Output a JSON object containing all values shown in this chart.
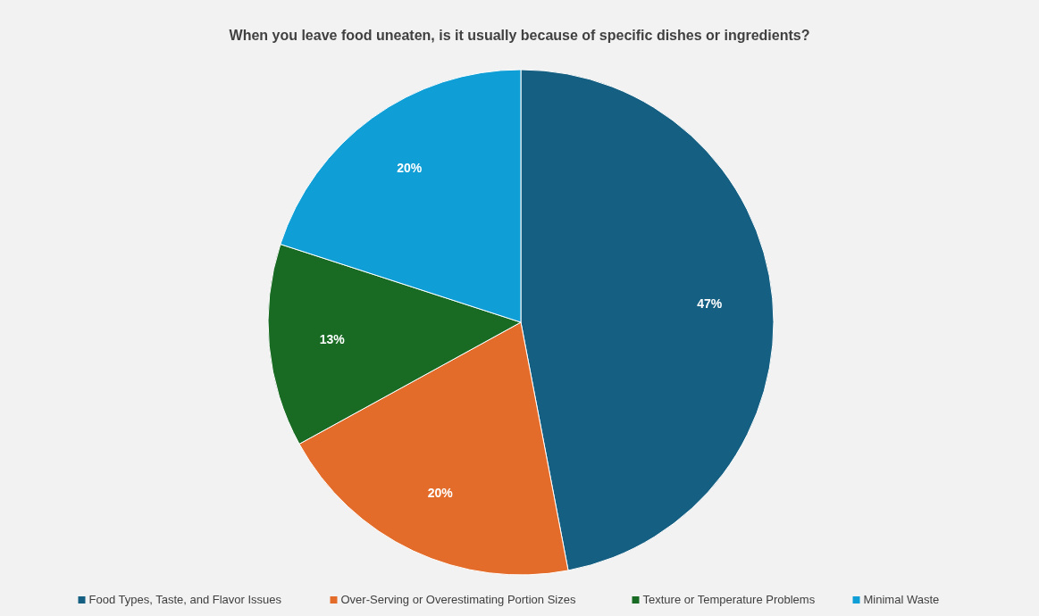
{
  "chart_data": {
    "type": "pie",
    "title": "When you leave food uneaten, is it usually because of specific dishes or ingredients?",
    "categories": [
      "Food Types, Taste, and Flavor Issues",
      "Over-Serving or Overestimating Portion Sizes",
      "Texture or Temperature Problems",
      "Minimal Waste"
    ],
    "values": [
      47,
      20,
      13,
      20
    ],
    "colors": [
      "#155f82",
      "#e46c2a",
      "#196b24",
      "#0f9ed5"
    ],
    "value_labels": [
      "47%",
      "20%",
      "13%",
      "20%"
    ],
    "legend": "bottom"
  }
}
